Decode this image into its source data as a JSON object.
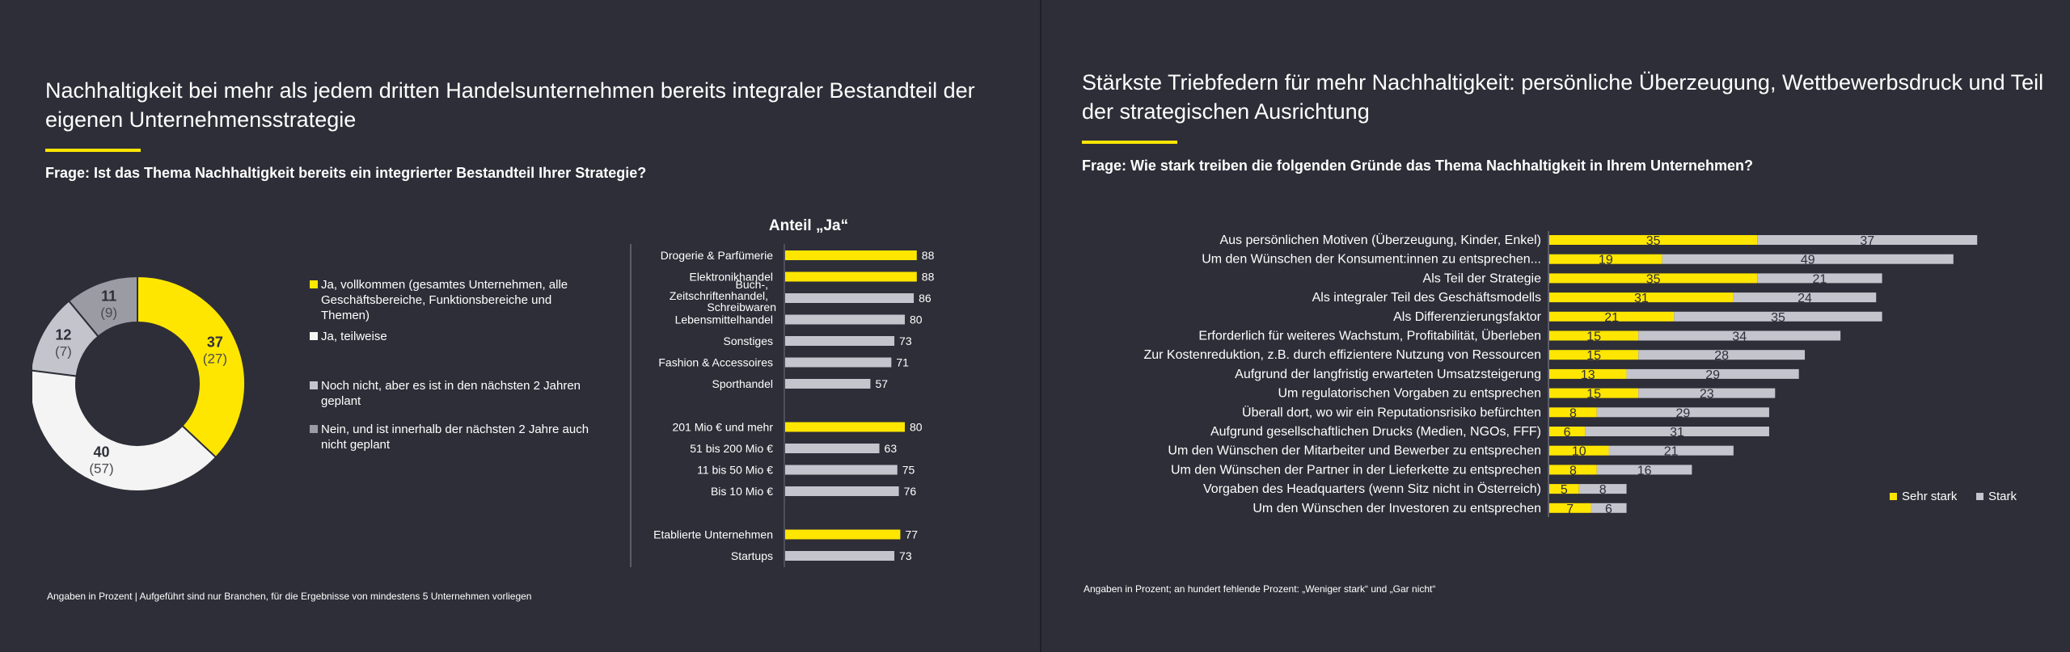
{
  "left": {
    "title": "Nachhaltigkeit bei mehr als jedem dritten Handelsunternehmen bereits integraler Bestandteil der eigenen Unternehmensstrategie",
    "question": "Frage: Ist das Thema Nachhaltigkeit bereits ein integrierter Bestandteil Ihrer Strategie?",
    "footnote": "Angaben in Prozent | Aufgeführt sind nur Branchen, für die Ergebnisse von mindestens 5 Unternehmen vorliegen"
  },
  "right": {
    "title": "Stärkste Triebfedern für mehr Nachhaltigkeit: persönliche Überzeugung, Wettbewerbsdruck und Teil der strategischen Ausrichtung",
    "question": "Frage: Wie stark treiben die folgenden Gründe das Thema Nachhaltigkeit in Ihrem Unternehmen?",
    "footnote": "Angaben in Prozent; an hundert fehlende Prozent: „Weniger stark“ und „Gar nicht“"
  },
  "colors": {
    "background": "#2e2e38",
    "yellow": "#ffe600",
    "lightgray": "#c4c4cd",
    "midgray": "#9b9ba3",
    "darkgray": "#747480",
    "white": "#f4f4f4"
  },
  "chart_data": [
    {
      "type": "pie",
      "variant": "donut",
      "categories": [
        "Ja, vollkommen (gesamtes Unternehmen, alle Geschäftsbereiche, Funktionsbereiche und Themen)",
        "Ja, teilweise",
        "Noch nicht, aber es ist in den nächsten 2 Jahren geplant",
        "Nein, und ist innerhalb der nächsten 2 Jahre auch nicht geplant"
      ],
      "values": [
        37,
        40,
        12,
        11
      ],
      "previous_values": [
        27,
        57,
        7,
        9
      ],
      "value_labels": [
        "37",
        "40",
        "12",
        "11"
      ],
      "previous_labels": [
        "(27)",
        "(57)",
        "(7)",
        "(9)"
      ],
      "colors": [
        "#ffe600",
        "#f4f4f4",
        "#c4c4cd",
        "#9b9ba3"
      ],
      "legend_position": "right"
    },
    {
      "type": "bar",
      "orientation": "horizontal",
      "title": "Anteil „Ja“",
      "groups": [
        {
          "categories": [
            "Drogerie & Parfümerie",
            "Elektronikhandel",
            "Buch-, Zeitschriftenhandel, Schreibwaren",
            "Lebensmittelhandel",
            "Sonstiges",
            "Fashion & Accessoires",
            "Sporthandel"
          ],
          "values": [
            88,
            88,
            86,
            80,
            73,
            71,
            57
          ],
          "highlight": [
            true,
            true,
            false,
            false,
            false,
            false,
            false
          ]
        },
        {
          "categories": [
            "201 Mio € und mehr",
            "51 bis 200 Mio €",
            "11 bis 50 Mio €",
            "Bis 10 Mio €"
          ],
          "values": [
            80,
            63,
            75,
            76
          ],
          "highlight": [
            true,
            false,
            false,
            false
          ]
        },
        {
          "categories": [
            "Etablierte Unternehmen",
            "Startups"
          ],
          "values": [
            77,
            73
          ],
          "highlight": [
            true,
            false
          ]
        }
      ],
      "xlim": [
        0,
        100
      ],
      "highlight_color": "#ffe600",
      "bar_color": "#c4c4cd"
    },
    {
      "type": "bar",
      "orientation": "horizontal",
      "stacked": true,
      "categories": [
        "Aus persönlichen Motiven (Überzeugung, Kinder, Enkel)",
        "Um den Wünschen der Konsument:innen zu entsprechen...",
        "Als Teil der Strategie",
        "Als integraler Teil des Geschäftsmodells",
        "Als Differenzierungsfaktor",
        "Erforderlich für weiteres Wachstum, Profitabilität, Überleben",
        "Zur Kostenreduktion, z.B. durch effizientere Nutzung von Ressourcen",
        "Aufgrund der langfristig erwarteten Umsatzsteigerung",
        "Um regulatorischen Vorgaben zu entsprechen",
        "Überall dort, wo wir ein Reputationsrisiko befürchten",
        "Aufgrund gesellschaftlichen Drucks (Medien, NGOs, FFF)",
        "Um den Wünschen der Mitarbeiter und Bewerber zu entsprechen",
        "Um den Wünschen der Partner in der Lieferkette zu entsprechen",
        "Vorgaben des Headquarters (wenn Sitz nicht in Österreich)",
        "Um den Wünschen der Investoren zu entsprechen"
      ],
      "series": [
        {
          "name": "Sehr stark",
          "color": "#ffe600",
          "values": [
            35,
            19,
            35,
            31,
            21,
            15,
            15,
            13,
            15,
            8,
            6,
            10,
            8,
            5,
            7
          ]
        },
        {
          "name": "Stark",
          "color": "#c4c4cd",
          "values": [
            37,
            49,
            21,
            24,
            35,
            34,
            28,
            29,
            23,
            29,
            31,
            21,
            16,
            8,
            6
          ]
        }
      ],
      "legend_position": "bottom-right"
    }
  ]
}
